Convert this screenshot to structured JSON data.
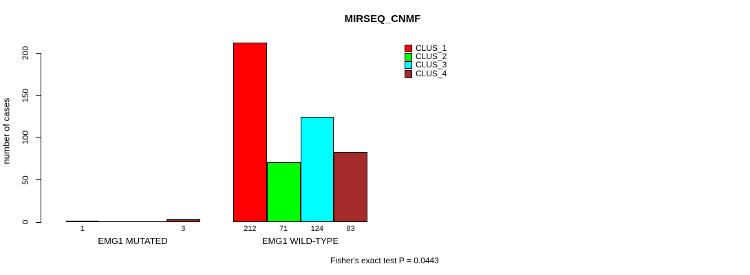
{
  "title": "MIRSEQ_CNMF",
  "chart_data": {
    "type": "bar",
    "title": "MIRSEQ_CNMF",
    "ylabel": "number of cases",
    "xlabel": "",
    "ylim": [
      0,
      200
    ],
    "yticks": [
      0,
      50,
      100,
      150,
      200
    ],
    "grid": false,
    "legend_position": "top-right",
    "categories": [
      "EMG1 MUTATED",
      "EMG1 WILD-TYPE"
    ],
    "series": [
      {
        "name": "CLUS_1",
        "color": "#FF0000",
        "values": [
          1,
          212
        ]
      },
      {
        "name": "CLUS_2",
        "color": "#00FF00",
        "values": [
          0,
          71
        ]
      },
      {
        "name": "CLUS_3",
        "color": "#00FFFF",
        "values": [
          0,
          124
        ]
      },
      {
        "name": "CLUS_4",
        "color": "#A52A2A",
        "values": [
          3,
          83
        ]
      }
    ],
    "value_labels_shown": [
      "1",
      "3",
      "212",
      "71",
      "124",
      "83"
    ],
    "zero_values_unlabeled": true,
    "annotation": "Fisher's exact test P = 0.0443"
  },
  "colors": {
    "background": "#FFFFFF",
    "axis": "#000000",
    "bar_border": "#000000",
    "text": "#000000"
  }
}
